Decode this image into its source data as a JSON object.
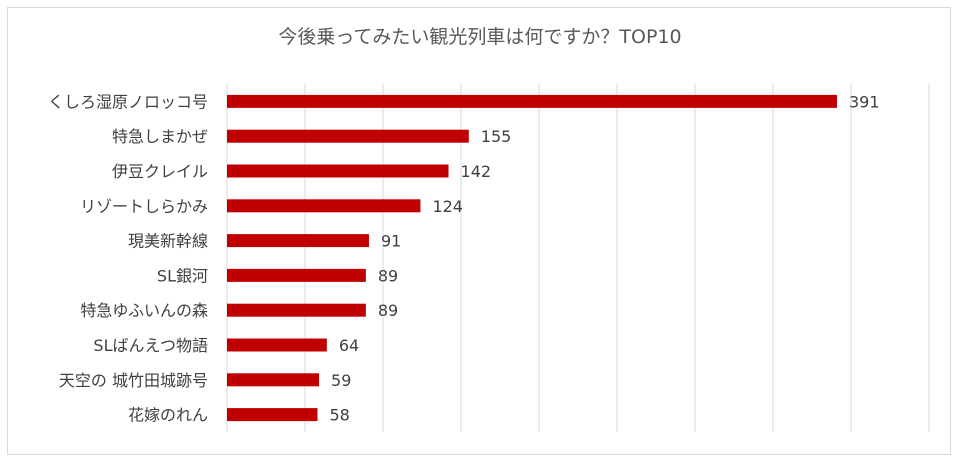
{
  "chart_data": {
    "type": "bar",
    "orientation": "horizontal",
    "title": "今後乗ってみたい観光列車は何ですか？TOP10",
    "categories": [
      "くしろ湿原ノロッコ号",
      "特急しまかぜ",
      "伊豆クレイル",
      "リゾートしらかみ",
      "現美新幹線",
      "SL銀河",
      "特急ゆふいんの森",
      "SLばんえつ物語",
      "天空の 城竹田城跡号",
      "花嫁のれん"
    ],
    "values": [
      391,
      155,
      142,
      124,
      91,
      89,
      89,
      64,
      59,
      58
    ],
    "xlim": [
      0,
      450
    ],
    "grid": true,
    "bar_color": "#c00000",
    "data_labels": true
  }
}
